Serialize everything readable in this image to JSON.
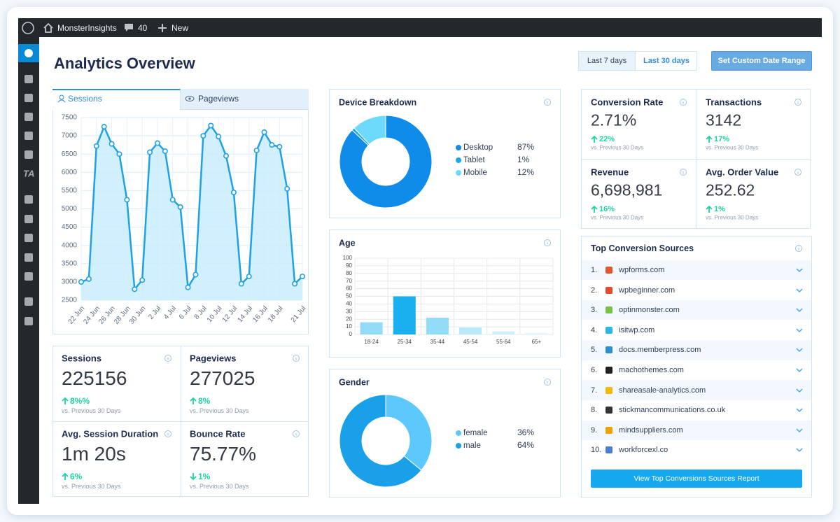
{
  "admin_bar": {
    "site": "MonsterInsights",
    "comments": "40",
    "new": "New"
  },
  "sidebar": {
    "ta": "TA"
  },
  "header": {
    "title": "Analytics Overview",
    "ranges": [
      "Last 7 days",
      "Last 30 days"
    ],
    "custom": "Set Custom Date Range"
  },
  "tabs": [
    "Sessions",
    "Pageviews"
  ],
  "chart_data": [
    {
      "type": "line",
      "color": "#1ea2e6",
      "fill": "#c9ecfb",
      "categories": [
        "22 Jun",
        null,
        "24 Jun",
        null,
        "26 Jun",
        null,
        "28 Jun",
        null,
        "30 Jun",
        null,
        "2 Jul",
        null,
        "4 Jul",
        null,
        "6 Jul",
        null,
        "8 Jul",
        null,
        "10 Jul",
        null,
        "12 Jul",
        null,
        "14 Jul",
        null,
        "16 Jul",
        null,
        "18 Jul",
        null,
        null,
        "21 Jul"
      ],
      "values": [
        3000,
        3080,
        6720,
        7250,
        6780,
        6500,
        5250,
        2800,
        3050,
        6550,
        6800,
        6580,
        5250,
        5050,
        2850,
        3200,
        7000,
        7280,
        6980,
        6450,
        5450,
        2950,
        3150,
        6600,
        7100,
        6750,
        6700,
        5550,
        2950,
        3150
      ],
      "ylim": [
        2500,
        7500
      ],
      "yticks": [
        2500,
        3000,
        3500,
        4000,
        4500,
        5000,
        5500,
        6000,
        6500,
        7000,
        7500
      ],
      "grid": true
    },
    {
      "type": "pie",
      "title": "Device Breakdown",
      "categories": [
        "Desktop",
        "Tablet",
        "Mobile"
      ],
      "values": [
        87,
        1,
        12
      ],
      "value_labels": [
        "87%",
        "1%",
        "12%"
      ],
      "colors": [
        "#0f8ce9",
        "#1da7ea",
        "#6ddafb"
      ]
    },
    {
      "type": "bar",
      "title": "Age",
      "categories": [
        "18-24",
        "25-34",
        "35-44",
        "45-54",
        "55-64",
        "65+"
      ],
      "values": [
        16,
        50,
        22,
        9,
        4,
        2
      ],
      "colors": [
        "#93dcf7",
        "#1ab0ef",
        "#93dcf7",
        "#b9e9fa",
        "#cdeffb",
        "#e0f5fc"
      ],
      "ylim": [
        0,
        100
      ],
      "yticks": [
        0,
        10,
        20,
        30,
        40,
        50,
        60,
        70,
        80,
        90,
        100
      ],
      "grid": true
    },
    {
      "type": "pie",
      "title": "Gender",
      "categories": [
        "female",
        "male"
      ],
      "values": [
        36,
        64
      ],
      "value_labels": [
        "36%",
        "64%"
      ],
      "colors": [
        "#5cc8fb",
        "#1aa0e8"
      ]
    }
  ],
  "stats": [
    {
      "label": "Sessions",
      "value": "225156",
      "change": "8%%",
      "direction": "up",
      "note": "vs. Previous 30 Days"
    },
    {
      "label": "Pageviews",
      "value": "277025",
      "change": "8%",
      "direction": "up",
      "note": "vs. Previous 30 Days"
    },
    {
      "label": "Avg. Session Duration",
      "value": "1m 20s",
      "change": "6%",
      "direction": "up",
      "note": "vs. Previous 30 Days"
    },
    {
      "label": "Bounce Rate",
      "value": "75.77%",
      "change": "1%",
      "direction": "down",
      "note": "vs. Previous 30 Days"
    }
  ],
  "conversions": [
    {
      "label": "Conversion Rate",
      "value": "2.71%",
      "change": "22%",
      "direction": "up",
      "note": "vs. Previous 30 Days"
    },
    {
      "label": "Transactions",
      "value": "3142",
      "change": "17%",
      "direction": "up",
      "note": "vs. Previous 30 Days"
    },
    {
      "label": "Revenue",
      "value": "6,698,981",
      "change": "16%",
      "direction": "up",
      "note": "vs. Previous 30 Days"
    },
    {
      "label": "Avg. Order Value",
      "value": "252.62",
      "change": "1%",
      "direction": "up",
      "note": "vs. Previous 30 Days"
    }
  ],
  "sources": {
    "title": "Top Conversion Sources",
    "items": [
      {
        "rank": "1.",
        "domain": "wpforms.com"
      },
      {
        "rank": "2.",
        "domain": "wpbeginner.com"
      },
      {
        "rank": "3.",
        "domain": "optinmonster.com"
      },
      {
        "rank": "4.",
        "domain": "isitwp.com"
      },
      {
        "rank": "5.",
        "domain": "docs.memberpress.com"
      },
      {
        "rank": "6.",
        "domain": "machothemes.com"
      },
      {
        "rank": "7.",
        "domain": "shareasale-analytics.com"
      },
      {
        "rank": "8.",
        "domain": "stickmancommunications.co.uk"
      },
      {
        "rank": "9.",
        "domain": "mindsuppliers.com"
      },
      {
        "rank": "10.",
        "domain": "workforcexl.co"
      }
    ],
    "button": "View Top Conversions Sources Report"
  }
}
